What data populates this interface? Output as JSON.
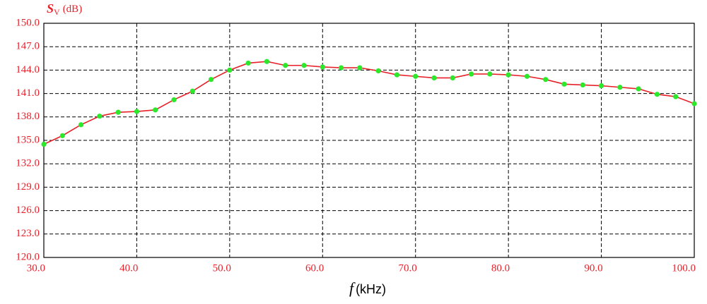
{
  "chart_data": {
    "type": "line",
    "y_label": {
      "symbol": "S",
      "subscript": "V",
      "unit": "(dB)"
    },
    "x_label": {
      "symbol": "f",
      "unit": "(kHz)"
    },
    "x": [
      30,
      32,
      34,
      36,
      38,
      40,
      42,
      44,
      46,
      48,
      50,
      52,
      54,
      56,
      58,
      60,
      62,
      64,
      66,
      68,
      70,
      72,
      74,
      76,
      78,
      80,
      82,
      84,
      86,
      88,
      90,
      92,
      94,
      96,
      98,
      100
    ],
    "series": [
      {
        "color": "#e8202a",
        "marker_color": "#2be82b",
        "values": [
          134.5,
          135.6,
          137.0,
          138.1,
          138.6,
          138.7,
          138.9,
          140.2,
          141.3,
          142.8,
          144.0,
          144.9,
          145.1,
          144.6,
          144.6,
          144.4,
          144.3,
          144.3,
          143.9,
          143.4,
          143.2,
          143.0,
          143.0,
          143.5,
          143.5,
          143.4,
          143.2,
          142.8,
          142.2,
          142.1,
          142.0,
          141.8,
          141.6,
          140.9,
          140.6,
          139.7
        ]
      }
    ],
    "xlim": [
      30,
      100
    ],
    "xticks": [
      {
        "value": 30,
        "label": "30.0"
      },
      {
        "value": 40,
        "label": "40.0"
      },
      {
        "value": 50,
        "label": "50.0"
      },
      {
        "value": 60,
        "label": "60.0"
      },
      {
        "value": 70,
        "label": "70.0"
      },
      {
        "value": 80,
        "label": "80.0"
      },
      {
        "value": 90,
        "label": "90.0"
      },
      {
        "value": 100,
        "label": "100.0"
      }
    ],
    "ylim": [
      120,
      150
    ],
    "yticks": [
      {
        "value": 120,
        "label": "120.0"
      },
      {
        "value": 123,
        "label": "123.0"
      },
      {
        "value": 126,
        "label": "126.0"
      },
      {
        "value": 129,
        "label": "129.0"
      },
      {
        "value": 132,
        "label": "132.0"
      },
      {
        "value": 135,
        "label": "135.0"
      },
      {
        "value": 138,
        "label": "138.0"
      },
      {
        "value": 141,
        "label": "141.0"
      },
      {
        "value": 144,
        "label": "144.0"
      },
      {
        "value": 147,
        "label": "147.0"
      },
      {
        "value": 150,
        "label": "150.0"
      }
    ],
    "grid": true
  }
}
